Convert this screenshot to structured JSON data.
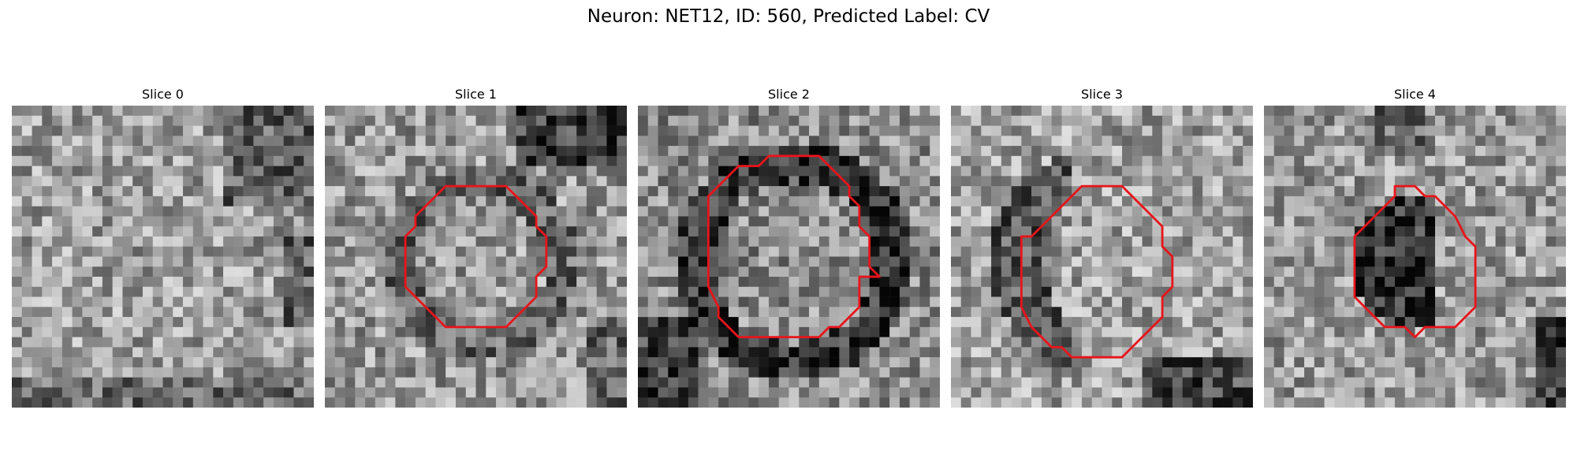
{
  "figure": {
    "title": "Neuron: NET12, ID: 560, Predicted Label: CV"
  },
  "contour_color": "#e8141a",
  "panels": [
    {
      "title": "Slice 0",
      "has_contour": false,
      "seed": 11,
      "base": 0.62,
      "dark_zone": "right-bottom"
    },
    {
      "title": "Slice 1",
      "has_contour": true,
      "seed": 23,
      "base": 0.6,
      "dark_zone": "top-right"
    },
    {
      "title": "Slice 2",
      "has_contour": true,
      "seed": 37,
      "base": 0.55,
      "dark_zone": "ring"
    },
    {
      "title": "Slice 3",
      "has_contour": true,
      "seed": 41,
      "base": 0.63,
      "dark_zone": "left-ring"
    },
    {
      "title": "Slice 4",
      "has_contour": true,
      "seed": 53,
      "base": 0.6,
      "dark_zone": "center"
    }
  ]
}
